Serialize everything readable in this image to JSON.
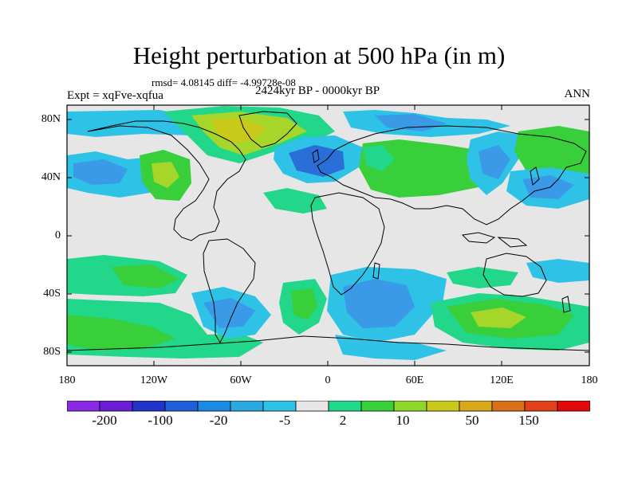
{
  "title": "Height perturbation at 500 hPa (in m)",
  "stats": "rmsd= 4.08145 diff= -4.99728e-08",
  "period": "2424kyr BP - 0000kyr BP",
  "experiment": "Expt = xqFve-xqfua",
  "season": "ANN",
  "lat_labels": [
    "80N",
    "40N",
    "0",
    "40S",
    "80S"
  ],
  "lon_labels": [
    "180",
    "120W",
    "60W",
    "0",
    "60E",
    "120E",
    "180"
  ],
  "colorbar": {
    "colors": [
      "#8a2be2",
      "#6a1fd6",
      "#2233c8",
      "#1f5fd8",
      "#1e88e5",
      "#2ba8e0",
      "#2dc2e6",
      "#e6e6e6",
      "#22d68a",
      "#38cf3a",
      "#8fd62a",
      "#c9c91a",
      "#d8a71a",
      "#d8701a",
      "#e0401a",
      "#e00a0a"
    ],
    "labels": [
      "-200",
      "-100",
      "-20",
      "-5",
      "2",
      "10",
      "50",
      "150"
    ]
  },
  "colors": {
    "neutral": "#e6e6e6",
    "blue_strong": "#2a6fd8",
    "blue_mid": "#3a9ae8",
    "cyan": "#2dc2e6",
    "green_light": "#22d68a",
    "green": "#38cf3a",
    "yellow_green": "#a6d62a",
    "yellow": "#c9c91a"
  }
}
